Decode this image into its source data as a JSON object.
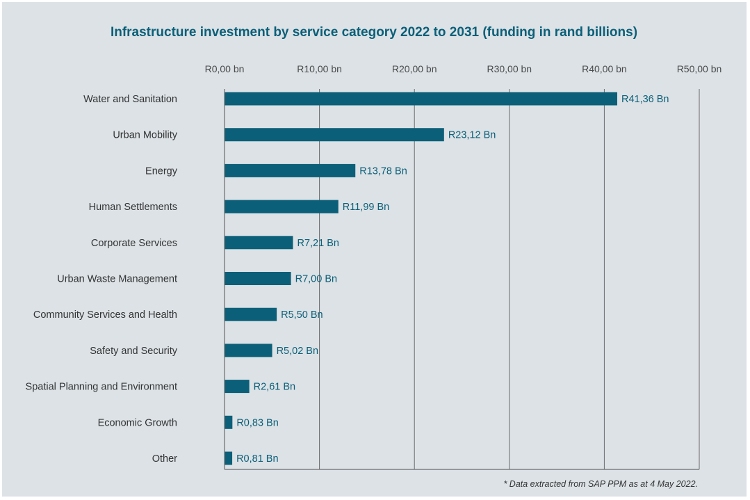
{
  "colors": {
    "background": "#dce2e6",
    "bar": "#0b5f78",
    "title": "#0b5f78",
    "label": "#0b5f78",
    "grid": "#6b6b6b"
  },
  "chart_data": {
    "type": "bar",
    "orientation": "horizontal",
    "title": "Infrastructure investment by service category 2022 to 2031 (funding in rand billions)",
    "xlim": [
      0,
      50
    ],
    "xticks": [
      0,
      10,
      20,
      30,
      40,
      50
    ],
    "xtick_labels": [
      "R0,00 bn",
      "R10,00 bn",
      "R20,00 bn",
      "R30,00 bn",
      "R40,00 bn",
      "R50,00 bn"
    ],
    "xaxis_position": "top",
    "grid": true,
    "categories": [
      "Water and Sanitation",
      "Urban Mobility",
      "Energy",
      "Human Settlements",
      "Corporate Services",
      "Urban Waste Management",
      "Community Services and Health",
      "Safety and Security",
      "Spatial Planning and Environment",
      "Economic Growth",
      "Other"
    ],
    "values": [
      41.36,
      23.12,
      13.78,
      11.99,
      7.21,
      7.0,
      5.5,
      5.02,
      2.61,
      0.83,
      0.81
    ],
    "data_labels": [
      "R41,36 Bn",
      "R23,12 Bn",
      "R13,78 Bn",
      "R11,99 Bn",
      "R7,21 Bn",
      "R7,00 Bn",
      "R5,50 Bn",
      "R5,02 Bn",
      "R2,61 Bn",
      "R0,83 Bn",
      "R0,81 Bn"
    ],
    "footnote": "* Data extracted from SAP PPM as at 4 May 2022."
  }
}
